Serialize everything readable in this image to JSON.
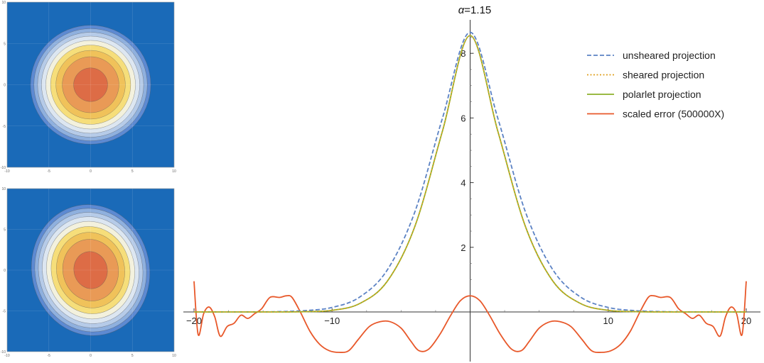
{
  "colors": {
    "unsheared": "#5b82c4",
    "sheared": "#e0a020",
    "polarlet": "#8cb02a",
    "error": "#e8582a",
    "contour_background": "#1a6ab8"
  },
  "chart_data": [
    {
      "type": "heatmap",
      "title": "",
      "description_levels": "filled contour plot of a centered circular Gaussian, 9 contour bands",
      "x_ticks": [
        "-10",
        "-5",
        "0",
        "5",
        "10"
      ],
      "y_ticks": [
        "10",
        "5",
        "0",
        "-5",
        "-10"
      ],
      "xlim": [
        -10,
        10
      ],
      "ylim": [
        -10,
        10
      ],
      "shear": 0,
      "level_colors": [
        "#1a6ab8",
        "#5d8ad2",
        "#8fb0de",
        "#b6cbe8",
        "#dce6f1",
        "#f3f1dd",
        "#f6de7a",
        "#f0c25a",
        "#e99a56",
        "#dd6c46"
      ]
    },
    {
      "type": "heatmap",
      "title": "",
      "description_levels": "filled contour plot of a sheared (tilted ellipse) Gaussian, 9 contour bands",
      "x_ticks": [
        "-10",
        "-5",
        "0",
        "5",
        "10"
      ],
      "y_ticks": [
        "10",
        "5",
        "0",
        "-5",
        "-10"
      ],
      "xlim": [
        -10,
        10
      ],
      "ylim": [
        -10,
        10
      ],
      "shear": 0.18,
      "level_colors": [
        "#1a6ab8",
        "#5d8ad2",
        "#8fb0de",
        "#b6cbe8",
        "#dce6f1",
        "#f3f1dd",
        "#f6de7a",
        "#f0c25a",
        "#e99a56",
        "#dd6c46"
      ]
    },
    {
      "type": "line",
      "title_symbol": "α",
      "title_value": "=1.15",
      "xlabel": "",
      "ylabel": "",
      "xlim": [
        -20.5,
        20.5
      ],
      "ylim": [
        -1.3,
        8.9
      ],
      "x_ticks": [
        -20,
        -10,
        10,
        20
      ],
      "x_tick_labels": [
        "−20",
        "−10",
        "10",
        "20"
      ],
      "y_ticks": [
        2,
        4,
        6,
        8
      ],
      "y_tick_labels": [
        "2",
        "4",
        "6",
        "8"
      ],
      "legend_position": "top-right",
      "series": [
        {
          "name": "unsheared projection",
          "style": "dashed",
          "x": [
            -20,
            -16,
            -14,
            -12,
            -10,
            -8,
            -6,
            -4,
            -2,
            0,
            2,
            4,
            6,
            8,
            10,
            12,
            14,
            16,
            20
          ],
          "y": [
            0,
            0,
            0.01,
            0.04,
            0.14,
            0.46,
            1.3,
            3.1,
            6.0,
            8.65,
            6.0,
            3.1,
            1.3,
            0.46,
            0.14,
            0.04,
            0.01,
            0,
            0
          ]
        },
        {
          "name": "sheared projection",
          "style": "dotted",
          "x": [
            -20,
            -16,
            -14,
            -12,
            -10,
            -8,
            -6,
            -4,
            -2,
            0,
            2,
            4,
            6,
            8,
            10,
            12,
            14,
            16,
            20
          ],
          "y": [
            0,
            0,
            0,
            0.01,
            0.05,
            0.26,
            0.95,
            2.65,
            5.6,
            8.55,
            5.6,
            2.65,
            0.95,
            0.26,
            0.05,
            0.01,
            0,
            0,
            0
          ]
        },
        {
          "name": "polarlet projection",
          "style": "solid",
          "x": [
            -20,
            -16,
            -14,
            -12,
            -10,
            -8,
            -6,
            -4,
            -2,
            0,
            2,
            4,
            6,
            8,
            10,
            12,
            14,
            16,
            20
          ],
          "y": [
            0,
            0,
            0,
            0.01,
            0.05,
            0.26,
            0.95,
            2.65,
            5.6,
            8.55,
            5.6,
            2.65,
            0.95,
            0.26,
            0.05,
            0.01,
            0,
            0,
            0
          ]
        },
        {
          "name": "scaled error (500000X)",
          "style": "solid",
          "x": [
            -20,
            -19.7,
            -19.3,
            -18.9,
            -18.5,
            -18.1,
            -17.6,
            -17.1,
            -16.6,
            -16.1,
            -15.6,
            -15.1,
            -14.5,
            -13.8,
            -13.3,
            -12.9,
            -12.3,
            -11.6,
            -10.9,
            -10.2,
            -9.5,
            -8.8,
            -8.1,
            -7.3,
            -6.5,
            -5.8,
            -5.0,
            -4.3,
            -3.7,
            -3.0,
            -2.2,
            -1.4,
            -0.7,
            0,
            0.7,
            1.4,
            2.2,
            3.0,
            3.7,
            4.3,
            5.0,
            5.8,
            6.5,
            7.3,
            8.1,
            8.8,
            9.5,
            10.2,
            10.9,
            11.6,
            12.3,
            12.9,
            13.3,
            13.8,
            14.5,
            15.1,
            15.6,
            16.1,
            16.6,
            17.1,
            17.6,
            18.1,
            18.5,
            18.9,
            19.3,
            19.7,
            20
          ],
          "y": [
            0.95,
            -0.7,
            -0.05,
            0.15,
            -0.15,
            -0.75,
            -0.45,
            -0.35,
            -0.1,
            -0.2,
            -0.05,
            0.1,
            0.45,
            0.45,
            0.5,
            0.45,
            0.0,
            -0.6,
            -1.0,
            -1.2,
            -1.25,
            -1.2,
            -0.85,
            -0.45,
            -0.3,
            -0.3,
            -0.5,
            -0.9,
            -1.2,
            -1.15,
            -0.7,
            -0.1,
            0.35,
            0.5,
            0.35,
            -0.1,
            -0.7,
            -1.15,
            -1.2,
            -0.9,
            -0.5,
            -0.3,
            -0.3,
            -0.45,
            -0.85,
            -1.2,
            -1.25,
            -1.2,
            -1.0,
            -0.6,
            0.0,
            0.45,
            0.5,
            0.45,
            0.45,
            0.1,
            -0.05,
            -0.2,
            -0.1,
            -0.35,
            -0.45,
            -0.75,
            -0.15,
            0.15,
            -0.05,
            -0.7,
            0.95
          ]
        }
      ]
    }
  ]
}
